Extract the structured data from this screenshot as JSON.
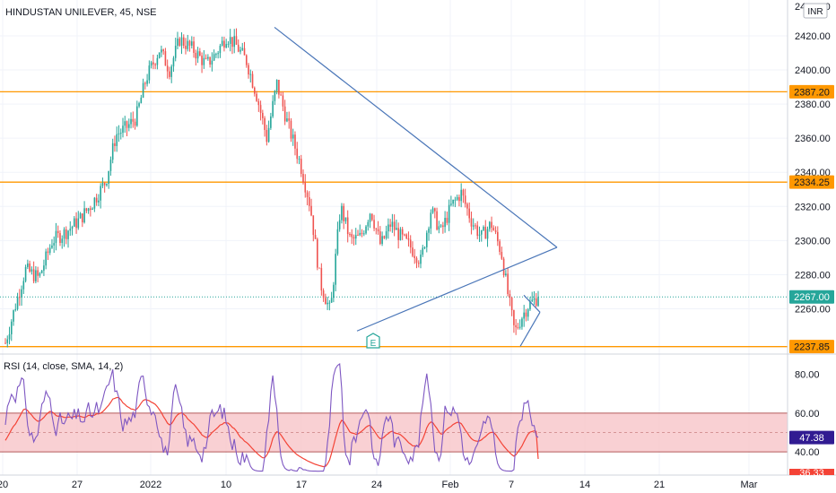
{
  "colors": {
    "up": "#26a69a",
    "down": "#ef5350",
    "level": "#ff9800",
    "trend": "#4a76b8",
    "last": "#26a69a",
    "rsi_line": "#7e57c2",
    "rsi_ma": "#f44336",
    "rsi_band": "#f8c4c8",
    "rsi_band_edge": "#b45a5a"
  },
  "header": {
    "symbol_label": "HINDUSTAN UNILEVER, 45, NSE",
    "currency": "INR"
  },
  "price_axis": {
    "ticks": [
      "2420.00",
      "2400.00",
      "2380.00",
      "2360.00",
      "2340.00",
      "2320.00",
      "2300.00",
      "2280.00",
      "2260.00"
    ],
    "top_partial_tick": "2440.00"
  },
  "time_axis": {
    "labels": [
      "20",
      "27",
      "2022",
      "10",
      "17",
      "24",
      "Feb",
      "7",
      "14",
      "21",
      "Mar"
    ]
  },
  "levels": [
    {
      "price": 2387.2,
      "label": "2387.20"
    },
    {
      "price": 2334.25,
      "label": "2334.25"
    },
    {
      "price": 2237.85,
      "label": "2237.85"
    }
  ],
  "last_price": {
    "price": 2267.0,
    "label": "2267.00"
  },
  "earnings_marker": {
    "label": "E"
  },
  "rsi": {
    "title": "RSI (14, close, SMA, 14, 2)",
    "ticks": [
      "80.00",
      "60.00",
      "40.00"
    ],
    "current": "47.38",
    "ma_current": "36.33",
    "ob": 60,
    "os": 40
  },
  "chart_data": {
    "type": "candlestick",
    "title": "HINDUSTAN UNILEVER, 45, NSE",
    "ylim": [
      2234,
      2441
    ],
    "x": [
      "20",
      "27",
      "2022",
      "10",
      "17",
      "24",
      "Feb",
      "7",
      "14",
      "21",
      "Mar"
    ],
    "price_path": [
      [
        0,
        2240
      ],
      [
        1.5,
        2262
      ],
      [
        3,
        2283
      ],
      [
        5,
        2278
      ],
      [
        7,
        2300
      ],
      [
        9,
        2305
      ],
      [
        11,
        2312
      ],
      [
        13,
        2322
      ],
      [
        15,
        2335
      ],
      [
        16.5,
        2362
      ],
      [
        18,
        2366
      ],
      [
        19.5,
        2372
      ],
      [
        21,
        2395
      ],
      [
        23,
        2412
      ],
      [
        24.5,
        2400
      ],
      [
        26,
        2418
      ],
      [
        28,
        2412
      ],
      [
        30,
        2403
      ],
      [
        31.5,
        2410
      ],
      [
        33,
        2420
      ],
      [
        34.5,
        2414
      ],
      [
        36,
        2405
      ],
      [
        37.5,
        2385
      ],
      [
        39,
        2360
      ],
      [
        40.5,
        2392
      ],
      [
        42,
        2370
      ],
      [
        44,
        2345
      ],
      [
        45.5,
        2320
      ],
      [
        47,
        2275
      ],
      [
        48.5,
        2258
      ],
      [
        50,
        2320
      ],
      [
        51.5,
        2300
      ],
      [
        53,
        2302
      ],
      [
        54.5,
        2318
      ],
      [
        56,
        2297
      ],
      [
        57.5,
        2310
      ],
      [
        59,
        2302
      ],
      [
        60.5,
        2296
      ],
      [
        62,
        2288
      ],
      [
        63.5,
        2318
      ],
      [
        65,
        2305
      ],
      [
        66.5,
        2320
      ],
      [
        68,
        2328
      ],
      [
        69.5,
        2312
      ],
      [
        71,
        2302
      ],
      [
        72.5,
        2310
      ],
      [
        74,
        2293
      ],
      [
        75,
        2268
      ],
      [
        76,
        2246
      ],
      [
        77,
        2255
      ],
      [
        78,
        2262
      ],
      [
        79.5,
        2267
      ]
    ],
    "levels": [
      2387.2,
      2334.25,
      2237.85
    ],
    "last": 2267.0,
    "trendlines": [
      {
        "from": [
          50,
          2425
        ],
        "to": [
          100,
          2296
        ]
      },
      {
        "from": [
          64,
          2247
        ],
        "to": [
          100,
          2296
        ]
      },
      {
        "from": [
          94.5,
          2240
        ],
        "to": [
          98,
          2256
        ]
      }
    ],
    "rsi": {
      "ylim": [
        28,
        90
      ],
      "ob": 60,
      "os": 40,
      "current": 47.38,
      "ma_current": 36.33
    }
  }
}
